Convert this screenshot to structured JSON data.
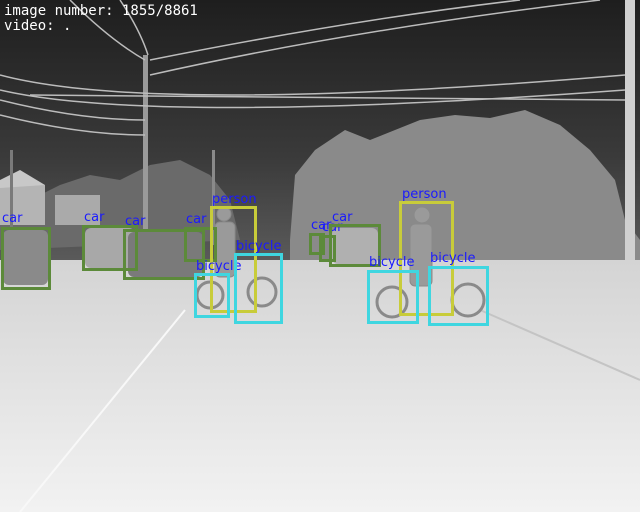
{
  "overlay": {
    "image_number": "image number: 1855/8861",
    "video": "video: ."
  },
  "colors": {
    "label_text": "#1a1aff",
    "car_box": "#5c8a3a",
    "person_box": "#c8cc3a",
    "bicycle_box": "#3fd6e0",
    "sky": "#2e2e2e",
    "road": "#e8e8e8"
  },
  "detections": [
    {
      "label": "car",
      "class": "car"
    },
    {
      "label": "car",
      "class": "car"
    },
    {
      "label": "car",
      "class": "car"
    },
    {
      "label": "car",
      "class": "car"
    },
    {
      "label": "car",
      "class": "car"
    },
    {
      "label": "car",
      "class": "car"
    },
    {
      "label": "car",
      "class": "car"
    },
    {
      "label": "person",
      "class": "person"
    },
    {
      "label": "bicycle",
      "class": "bicycle"
    },
    {
      "label": "bicycle",
      "class": "bicycle"
    },
    {
      "label": "person",
      "class": "person"
    },
    {
      "label": "bicycle",
      "class": "bicycle"
    },
    {
      "label": "bicycle",
      "class": "bicycle"
    }
  ]
}
